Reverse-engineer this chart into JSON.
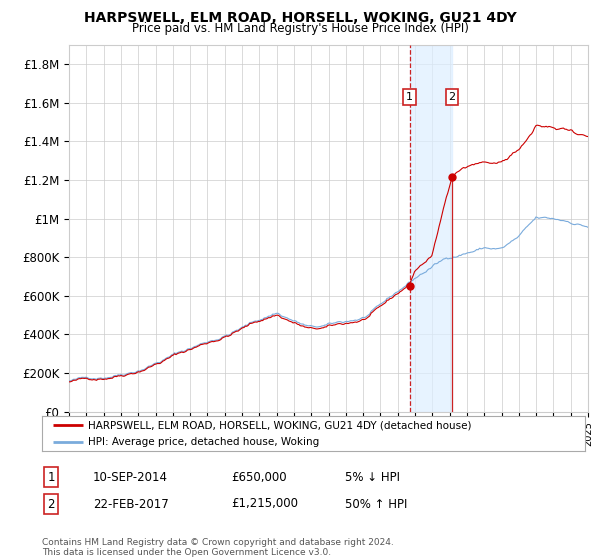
{
  "title": "HARPSWELL, ELM ROAD, HORSELL, WOKING, GU21 4DY",
  "subtitle": "Price paid vs. HM Land Registry's House Price Index (HPI)",
  "legend_line1": "HARPSWELL, ELM ROAD, HORSELL, WOKING, GU21 4DY (detached house)",
  "legend_line2": "HPI: Average price, detached house, Woking",
  "annotation1_label": "1",
  "annotation1_date": "10-SEP-2014",
  "annotation1_price": "£650,000",
  "annotation1_hpi": "5% ↓ HPI",
  "annotation2_label": "2",
  "annotation2_date": "22-FEB-2017",
  "annotation2_price": "£1,215,000",
  "annotation2_hpi": "50% ↑ HPI",
  "footnote": "Contains HM Land Registry data © Crown copyright and database right 2024.\nThis data is licensed under the Open Government Licence v3.0.",
  "year_start": 1995,
  "year_end": 2025,
  "ylim_min": 0,
  "ylim_max": 1900000,
  "sale1_year": 2014.69,
  "sale1_price": 650000,
  "sale2_year": 2017.14,
  "sale2_price": 1215000,
  "hpi_color": "#7aabdc",
  "price_color": "#cc0000",
  "shade_color": "#ddeeff",
  "annotation_box_color": "#cc2222",
  "grid_color": "#cccccc",
  "background_color": "#ffffff",
  "hpi_anchors_x": [
    1995,
    1996,
    1997,
    1998,
    1999,
    2000,
    2001,
    2002,
    2003,
    2004,
    2005,
    2006,
    2007,
    2008,
    2009,
    2010,
    2011,
    2012,
    2013,
    2014,
    2015,
    2016,
    2017,
    2018,
    2019,
    2020,
    2021,
    2022,
    2023,
    2024,
    2025
  ],
  "hpi_anchors_y": [
    145000,
    155000,
    170000,
    195000,
    225000,
    265000,
    305000,
    340000,
    375000,
    410000,
    450000,
    490000,
    530000,
    490000,
    450000,
    455000,
    470000,
    490000,
    540000,
    610000,
    680000,
    740000,
    790000,
    820000,
    845000,
    840000,
    895000,
    980000,
    970000,
    960000,
    940000
  ],
  "price_anchors_x": [
    1995,
    1996,
    1997,
    1998,
    1999,
    2000,
    2001,
    2002,
    2003,
    2004,
    2005,
    2006,
    2007,
    2008,
    2009,
    2010,
    2011,
    2012,
    2013,
    2014,
    2014.69,
    2015,
    2016,
    2017.14,
    2018,
    2019,
    2020,
    2021,
    2022,
    2023,
    2024,
    2025
  ],
  "price_anchors_y": [
    140000,
    150000,
    165000,
    190000,
    220000,
    260000,
    300000,
    335000,
    370000,
    405000,
    445000,
    485000,
    520000,
    480000,
    440000,
    445000,
    460000,
    480000,
    530000,
    600000,
    650000,
    720000,
    800000,
    1215000,
    1260000,
    1290000,
    1285000,
    1355000,
    1470000,
    1460000,
    1450000,
    1420000
  ]
}
